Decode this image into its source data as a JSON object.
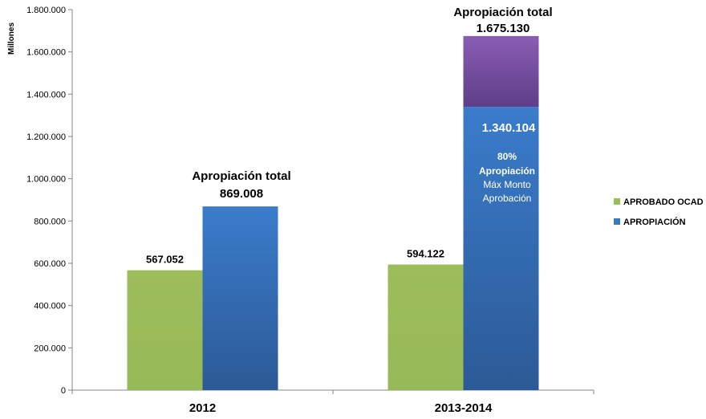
{
  "chart_data": {
    "type": "bar",
    "ylabel": "Millones",
    "ylim": [
      0,
      1800000
    ],
    "yticks": [
      "0",
      "200.000",
      "400.000",
      "600.000",
      "800.000",
      "1.000.000",
      "1.200.000",
      "1.400.000",
      "1.600.000",
      "1.800.000"
    ],
    "categories": [
      "2012",
      "2013-2014"
    ],
    "series": [
      {
        "name": "APROBADO OCAD",
        "color": "#9bbb59",
        "values": [
          567052,
          594122
        ],
        "labels": [
          "567.052",
          "594.122"
        ]
      },
      {
        "name": "APROPIACIÓN",
        "color": "#3b78c4",
        "values": [
          869008,
          1340104
        ],
        "labels": [
          "869.008",
          "1.340.104"
        ]
      }
    ],
    "stacked_extra": {
      "category": "2013-2014",
      "from": 1340104,
      "to": 1675130,
      "color": "#7a55a8"
    },
    "annotations": {
      "total_2012": {
        "title": "Apropiación total",
        "value": "869.008"
      },
      "total_2013_2014": {
        "title": "Apropiación total",
        "value": "1.675.130"
      },
      "inbar_value": "1.340.104",
      "inbar_percent": "80%",
      "inbar_label": "Apropiación",
      "inbar_sub1": "Máx Monto",
      "inbar_sub2": "Aprobación"
    },
    "legend": {
      "position": "right"
    },
    "grid": false
  }
}
